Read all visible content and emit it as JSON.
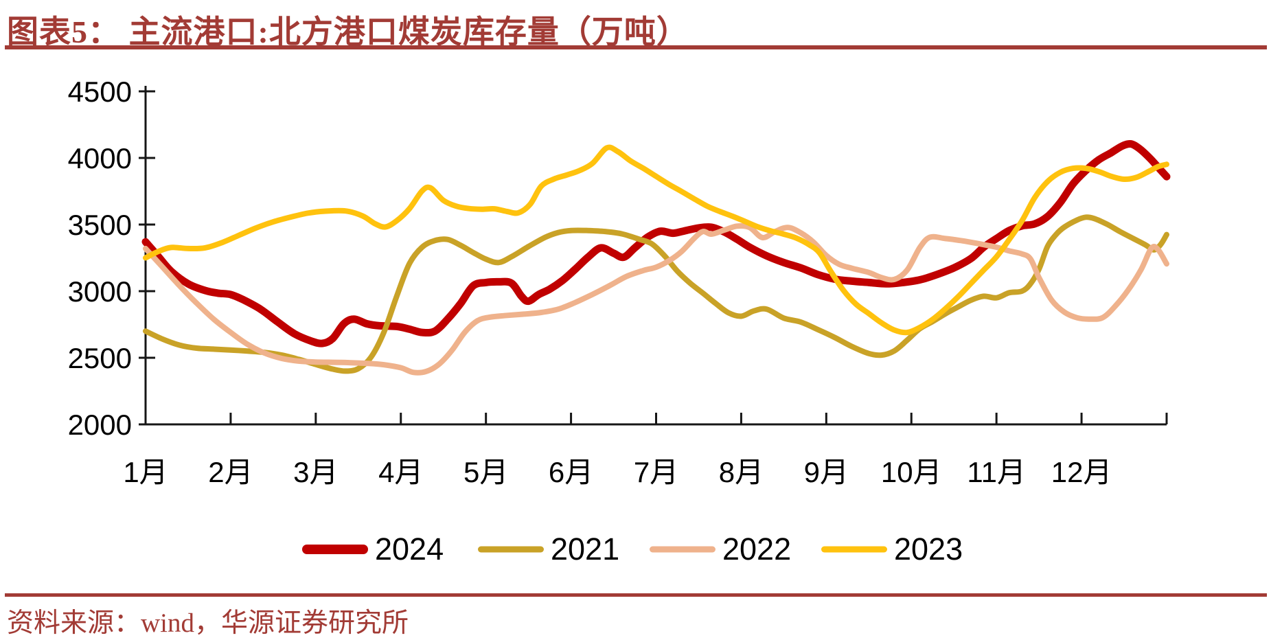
{
  "header": {
    "figure_title": "图表5：  主流港口:北方港口煤炭库存量（万吨）"
  },
  "footer": {
    "source_text": "资料来源：wind，华源证券研究所"
  },
  "theme": {
    "accent_color": "#A23B35",
    "axis_color": "#161616",
    "background": "#ffffff"
  },
  "chart_data": {
    "type": "line",
    "title": "北方港口煤炭库存量（万吨）",
    "xlabel": "",
    "ylabel": "",
    "ylim": [
      2000,
      4500
    ],
    "y_ticks": [
      "2000",
      "2500",
      "3000",
      "3500",
      "4000",
      "4500"
    ],
    "y_tick_values": [
      2000,
      2500,
      3000,
      3500,
      4000,
      4500
    ],
    "x_tick_labels": [
      "1月",
      "2月",
      "3月",
      "4月",
      "5月",
      "6月",
      "7月",
      "8月",
      "9月",
      "10月",
      "11月",
      "12月"
    ],
    "x_range_months": [
      0,
      12
    ],
    "grid": false,
    "legend_position": "bottom",
    "series": [
      {
        "name": "2024",
        "color": "#C00000",
        "line_width": 11,
        "points": [
          [
            0,
            3370
          ],
          [
            0.15,
            3260
          ],
          [
            0.3,
            3150
          ],
          [
            0.5,
            3055
          ],
          [
            0.7,
            3005
          ],
          [
            0.85,
            2985
          ],
          [
            1,
            2975
          ],
          [
            1.15,
            2935
          ],
          [
            1.35,
            2865
          ],
          [
            1.55,
            2770
          ],
          [
            1.75,
            2680
          ],
          [
            1.95,
            2625
          ],
          [
            2.08,
            2608
          ],
          [
            2.2,
            2645
          ],
          [
            2.33,
            2755
          ],
          [
            2.45,
            2790
          ],
          [
            2.6,
            2755
          ],
          [
            2.75,
            2740
          ],
          [
            2.95,
            2735
          ],
          [
            3.1,
            2715
          ],
          [
            3.25,
            2690
          ],
          [
            3.4,
            2700
          ],
          [
            3.55,
            2790
          ],
          [
            3.7,
            2905
          ],
          [
            3.85,
            3040
          ],
          [
            4,
            3065
          ],
          [
            4.15,
            3070
          ],
          [
            4.3,
            3060
          ],
          [
            4.42,
            2960
          ],
          [
            4.5,
            2925
          ],
          [
            4.62,
            2975
          ],
          [
            4.75,
            3015
          ],
          [
            4.9,
            3080
          ],
          [
            5.05,
            3165
          ],
          [
            5.2,
            3255
          ],
          [
            5.35,
            3325
          ],
          [
            5.5,
            3285
          ],
          [
            5.62,
            3255
          ],
          [
            5.75,
            3325
          ],
          [
            5.9,
            3405
          ],
          [
            6.05,
            3450
          ],
          [
            6.2,
            3435
          ],
          [
            6.35,
            3455
          ],
          [
            6.5,
            3475
          ],
          [
            6.65,
            3480
          ],
          [
            6.8,
            3445
          ],
          [
            6.95,
            3390
          ],
          [
            7.1,
            3330
          ],
          [
            7.3,
            3265
          ],
          [
            7.5,
            3215
          ],
          [
            7.7,
            3175
          ],
          [
            7.9,
            3125
          ],
          [
            8.1,
            3090
          ],
          [
            8.3,
            3075
          ],
          [
            8.5,
            3065
          ],
          [
            8.7,
            3055
          ],
          [
            8.9,
            3065
          ],
          [
            9.1,
            3085
          ],
          [
            9.3,
            3125
          ],
          [
            9.5,
            3175
          ],
          [
            9.7,
            3245
          ],
          [
            9.85,
            3330
          ],
          [
            10,
            3395
          ],
          [
            10.15,
            3455
          ],
          [
            10.3,
            3490
          ],
          [
            10.45,
            3505
          ],
          [
            10.6,
            3560
          ],
          [
            10.75,
            3665
          ],
          [
            10.9,
            3805
          ],
          [
            11.05,
            3905
          ],
          [
            11.2,
            3985
          ],
          [
            11.35,
            4040
          ],
          [
            11.48,
            4090
          ],
          [
            11.58,
            4105
          ],
          [
            11.68,
            4070
          ],
          [
            11.8,
            4000
          ],
          [
            11.9,
            3930
          ],
          [
            12,
            3860
          ]
        ]
      },
      {
        "name": "2021",
        "color": "#C9A227",
        "line_width": 8,
        "points": [
          [
            0,
            2700
          ],
          [
            0.2,
            2640
          ],
          [
            0.4,
            2595
          ],
          [
            0.6,
            2572
          ],
          [
            0.8,
            2565
          ],
          [
            1,
            2558
          ],
          [
            1.2,
            2550
          ],
          [
            1.4,
            2540
          ],
          [
            1.6,
            2520
          ],
          [
            1.8,
            2488
          ],
          [
            2,
            2450
          ],
          [
            2.2,
            2415
          ],
          [
            2.35,
            2400
          ],
          [
            2.5,
            2418
          ],
          [
            2.65,
            2505
          ],
          [
            2.8,
            2690
          ],
          [
            2.95,
            2960
          ],
          [
            3.1,
            3205
          ],
          [
            3.25,
            3330
          ],
          [
            3.4,
            3380
          ],
          [
            3.55,
            3388
          ],
          [
            3.7,
            3345
          ],
          [
            3.85,
            3290
          ],
          [
            4,
            3240
          ],
          [
            4.15,
            3215
          ],
          [
            4.3,
            3258
          ],
          [
            4.5,
            3335
          ],
          [
            4.7,
            3405
          ],
          [
            4.85,
            3440
          ],
          [
            5,
            3455
          ],
          [
            5.2,
            3455
          ],
          [
            5.4,
            3448
          ],
          [
            5.6,
            3430
          ],
          [
            5.8,
            3390
          ],
          [
            5.95,
            3355
          ],
          [
            6.1,
            3265
          ],
          [
            6.25,
            3150
          ],
          [
            6.4,
            3060
          ],
          [
            6.55,
            2985
          ],
          [
            6.7,
            2908
          ],
          [
            6.85,
            2838
          ],
          [
            7,
            2812
          ],
          [
            7.15,
            2852
          ],
          [
            7.3,
            2865
          ],
          [
            7.5,
            2798
          ],
          [
            7.7,
            2768
          ],
          [
            7.9,
            2712
          ],
          [
            8.1,
            2652
          ],
          [
            8.3,
            2585
          ],
          [
            8.5,
            2532
          ],
          [
            8.65,
            2520
          ],
          [
            8.8,
            2552
          ],
          [
            8.95,
            2632
          ],
          [
            9.1,
            2718
          ],
          [
            9.25,
            2772
          ],
          [
            9.4,
            2830
          ],
          [
            9.55,
            2882
          ],
          [
            9.7,
            2932
          ],
          [
            9.85,
            2962
          ],
          [
            10,
            2950
          ],
          [
            10.15,
            2988
          ],
          [
            10.3,
            3000
          ],
          [
            10.4,
            3055
          ],
          [
            10.5,
            3165
          ],
          [
            10.6,
            3335
          ],
          [
            10.7,
            3425
          ],
          [
            10.8,
            3482
          ],
          [
            10.95,
            3535
          ],
          [
            11.05,
            3555
          ],
          [
            11.15,
            3545
          ],
          [
            11.3,
            3502
          ],
          [
            11.45,
            3448
          ],
          [
            11.6,
            3398
          ],
          [
            11.75,
            3348
          ],
          [
            11.85,
            3310
          ],
          [
            11.93,
            3350
          ],
          [
            12,
            3425
          ]
        ]
      },
      {
        "name": "2022",
        "color": "#EFB28C",
        "line_width": 8,
        "points": [
          [
            0,
            3320
          ],
          [
            0.2,
            3180
          ],
          [
            0.4,
            3040
          ],
          [
            0.6,
            2910
          ],
          [
            0.8,
            2790
          ],
          [
            1,
            2690
          ],
          [
            1.2,
            2600
          ],
          [
            1.4,
            2535
          ],
          [
            1.6,
            2495
          ],
          [
            1.8,
            2475
          ],
          [
            2,
            2468
          ],
          [
            2.3,
            2465
          ],
          [
            2.6,
            2458
          ],
          [
            2.8,
            2448
          ],
          [
            3,
            2425
          ],
          [
            3.15,
            2390
          ],
          [
            3.3,
            2398
          ],
          [
            3.45,
            2452
          ],
          [
            3.6,
            2555
          ],
          [
            3.75,
            2690
          ],
          [
            3.9,
            2778
          ],
          [
            4.05,
            2805
          ],
          [
            4.25,
            2818
          ],
          [
            4.45,
            2828
          ],
          [
            4.65,
            2840
          ],
          [
            4.85,
            2865
          ],
          [
            5.05,
            2915
          ],
          [
            5.25,
            2975
          ],
          [
            5.45,
            3040
          ],
          [
            5.65,
            3110
          ],
          [
            5.85,
            3155
          ],
          [
            6,
            3180
          ],
          [
            6.15,
            3228
          ],
          [
            6.3,
            3298
          ],
          [
            6.45,
            3398
          ],
          [
            6.55,
            3448
          ],
          [
            6.65,
            3428
          ],
          [
            6.8,
            3458
          ],
          [
            6.95,
            3488
          ],
          [
            7.1,
            3478
          ],
          [
            7.25,
            3402
          ],
          [
            7.4,
            3448
          ],
          [
            7.55,
            3478
          ],
          [
            7.7,
            3438
          ],
          [
            7.85,
            3368
          ],
          [
            8,
            3268
          ],
          [
            8.15,
            3202
          ],
          [
            8.3,
            3172
          ],
          [
            8.5,
            3140
          ],
          [
            8.65,
            3102
          ],
          [
            8.8,
            3088
          ],
          [
            8.95,
            3158
          ],
          [
            9.1,
            3328
          ],
          [
            9.22,
            3405
          ],
          [
            9.4,
            3395
          ],
          [
            9.6,
            3378
          ],
          [
            9.8,
            3355
          ],
          [
            10,
            3330
          ],
          [
            10.15,
            3302
          ],
          [
            10.3,
            3280
          ],
          [
            10.4,
            3242
          ],
          [
            10.5,
            3102
          ],
          [
            10.65,
            2932
          ],
          [
            10.8,
            2842
          ],
          [
            10.95,
            2800
          ],
          [
            11.1,
            2790
          ],
          [
            11.25,
            2802
          ],
          [
            11.4,
            2890
          ],
          [
            11.55,
            3010
          ],
          [
            11.7,
            3162
          ],
          [
            11.82,
            3322
          ],
          [
            11.9,
            3312
          ],
          [
            12,
            3205
          ]
        ]
      },
      {
        "name": "2023",
        "color": "#FFC20E",
        "line_width": 8,
        "points": [
          [
            0,
            3250
          ],
          [
            0.15,
            3298
          ],
          [
            0.3,
            3328
          ],
          [
            0.5,
            3320
          ],
          [
            0.7,
            3325
          ],
          [
            0.9,
            3365
          ],
          [
            1.1,
            3420
          ],
          [
            1.3,
            3475
          ],
          [
            1.5,
            3520
          ],
          [
            1.7,
            3555
          ],
          [
            1.9,
            3585
          ],
          [
            2.1,
            3600
          ],
          [
            2.35,
            3602
          ],
          [
            2.55,
            3565
          ],
          [
            2.7,
            3505
          ],
          [
            2.82,
            3482
          ],
          [
            2.95,
            3528
          ],
          [
            3.1,
            3618
          ],
          [
            3.25,
            3752
          ],
          [
            3.35,
            3775
          ],
          [
            3.5,
            3682
          ],
          [
            3.65,
            3638
          ],
          [
            3.8,
            3620
          ],
          [
            3.95,
            3615
          ],
          [
            4.1,
            3618
          ],
          [
            4.25,
            3598
          ],
          [
            4.38,
            3588
          ],
          [
            4.52,
            3652
          ],
          [
            4.65,
            3788
          ],
          [
            4.8,
            3842
          ],
          [
            4.95,
            3872
          ],
          [
            5.1,
            3905
          ],
          [
            5.25,
            3958
          ],
          [
            5.42,
            4075
          ],
          [
            5.55,
            4048
          ],
          [
            5.7,
            3978
          ],
          [
            5.85,
            3922
          ],
          [
            6,
            3862
          ],
          [
            6.15,
            3802
          ],
          [
            6.3,
            3748
          ],
          [
            6.45,
            3692
          ],
          [
            6.6,
            3638
          ],
          [
            6.75,
            3598
          ],
          [
            6.9,
            3562
          ],
          [
            7.05,
            3522
          ],
          [
            7.2,
            3482
          ],
          [
            7.35,
            3452
          ],
          [
            7.5,
            3428
          ],
          [
            7.65,
            3398
          ],
          [
            7.8,
            3348
          ],
          [
            7.92,
            3288
          ],
          [
            8.05,
            3152
          ],
          [
            8.2,
            3008
          ],
          [
            8.35,
            2902
          ],
          [
            8.5,
            2832
          ],
          [
            8.65,
            2762
          ],
          [
            8.8,
            2708
          ],
          [
            8.95,
            2690
          ],
          [
            9.1,
            2728
          ],
          [
            9.25,
            2788
          ],
          [
            9.4,
            2868
          ],
          [
            9.55,
            2958
          ],
          [
            9.7,
            3058
          ],
          [
            9.85,
            3158
          ],
          [
            10,
            3258
          ],
          [
            10.15,
            3388
          ],
          [
            10.3,
            3528
          ],
          [
            10.45,
            3702
          ],
          [
            10.6,
            3822
          ],
          [
            10.75,
            3892
          ],
          [
            10.9,
            3922
          ],
          [
            11.05,
            3922
          ],
          [
            11.2,
            3898
          ],
          [
            11.35,
            3862
          ],
          [
            11.5,
            3840
          ],
          [
            11.65,
            3855
          ],
          [
            11.8,
            3902
          ],
          [
            11.9,
            3935
          ],
          [
            12,
            3952
          ]
        ]
      }
    ]
  }
}
